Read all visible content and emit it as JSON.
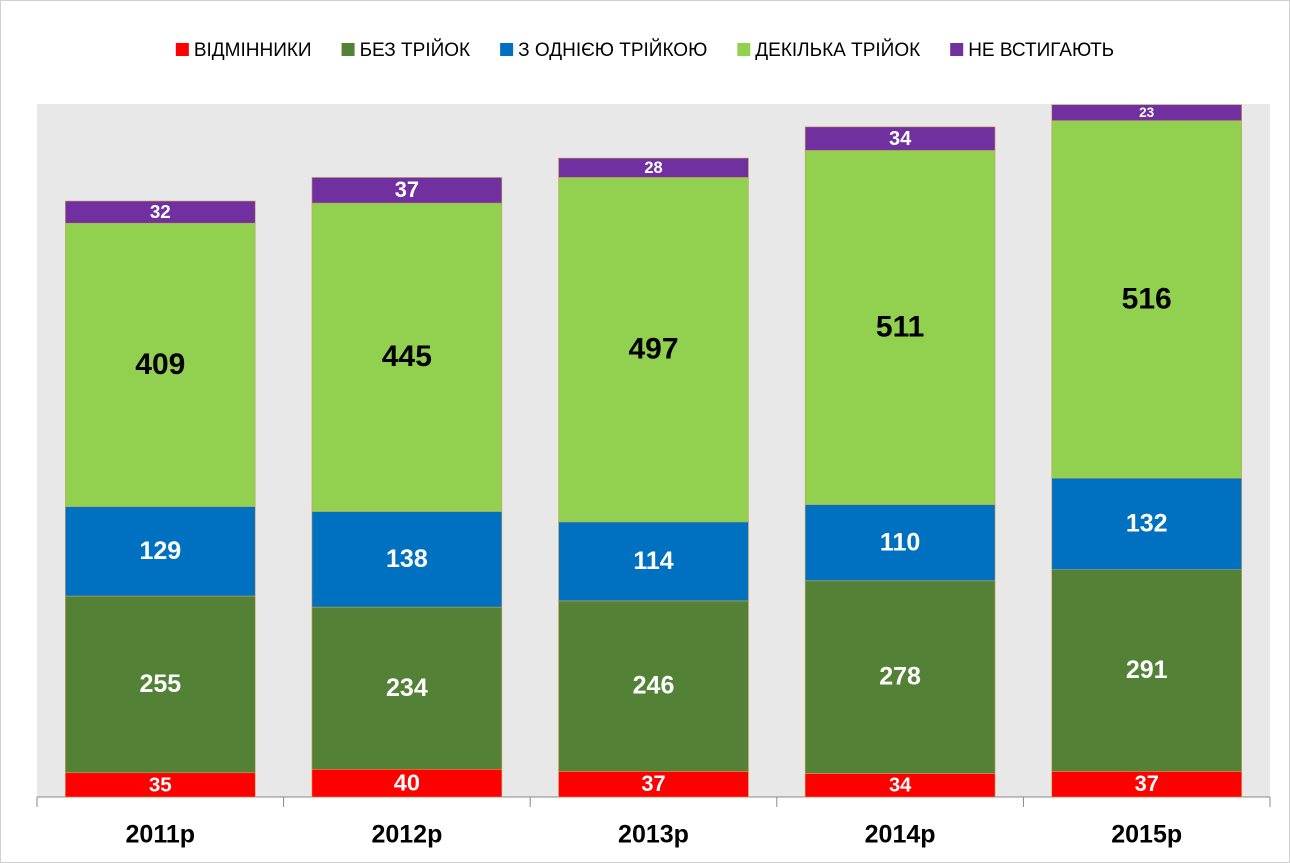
{
  "chart_data": {
    "type": "stacked_bar",
    "categories": [
      "2011р",
      "2012р",
      "2013р",
      "2014р",
      "2015р"
    ],
    "series": [
      {
        "name": "ВІДМІННИКИ",
        "color": "#ff0000",
        "label_color": "#ffffff",
        "values": [
          35,
          40,
          37,
          34,
          37
        ]
      },
      {
        "name": "БЕЗ ТРІЙОК",
        "color": "#538135",
        "label_color": "#ffffff",
        "values": [
          255,
          234,
          246,
          278,
          291
        ]
      },
      {
        "name": "З ОДНІЄЮ ТРІЙКОЮ",
        "color": "#0070c0",
        "label_color": "#ffffff",
        "values": [
          129,
          138,
          114,
          110,
          132
        ]
      },
      {
        "name": "ДЕКІЛЬКА ТРІЙОК",
        "color": "#92d050",
        "label_color": "#000000",
        "values": [
          409,
          445,
          497,
          511,
          516
        ]
      },
      {
        "name": "НЕ ВСТИГАЮТЬ",
        "color": "#7030a0",
        "label_color": "#ffffff",
        "values": [
          32,
          37,
          28,
          34,
          23
        ]
      }
    ],
    "ylim": [
      0,
      1000
    ],
    "legend": "top"
  }
}
